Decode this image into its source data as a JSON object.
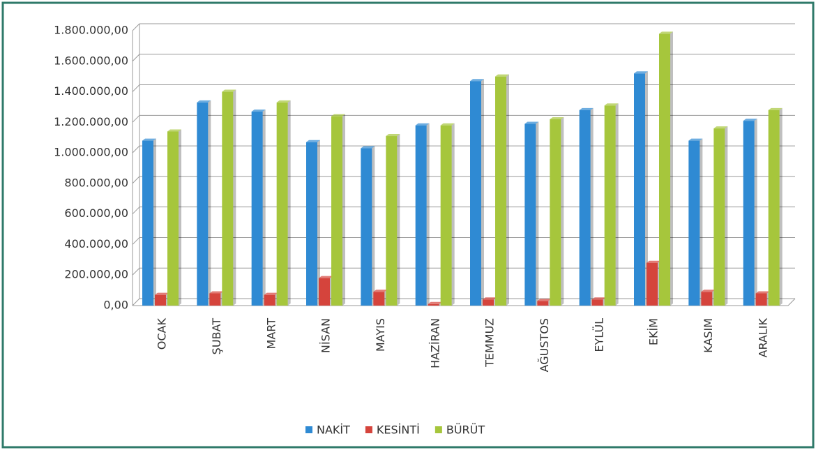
{
  "chart_data": {
    "type": "bar",
    "categories": [
      "OCAK",
      "ŞUBAT",
      "MART",
      "NİSAN",
      "MAYIS",
      "HAZİRAN",
      "TEMMUZ",
      "AĞUSTOS",
      "EYLÜL",
      "EKİM",
      "KASIM",
      "ARALIK"
    ],
    "series": [
      {
        "name": "NAKİT",
        "color": "#2f8ad3",
        "values": [
          1080000,
          1330000,
          1270000,
          1070000,
          1030000,
          1180000,
          1470000,
          1190000,
          1280000,
          1520000,
          1080000,
          1210000
        ]
      },
      {
        "name": "KESİNTİ",
        "color": "#d5443c",
        "values": [
          70000,
          80000,
          70000,
          180000,
          90000,
          10000,
          40000,
          30000,
          40000,
          280000,
          90000,
          80000
        ]
      },
      {
        "name": "BÜRÜT",
        "color": "#a6c63c",
        "values": [
          1140000,
          1400000,
          1330000,
          1240000,
          1110000,
          1180000,
          1500000,
          1220000,
          1310000,
          1780000,
          1160000,
          1280000
        ]
      }
    ],
    "ylim": [
      0,
      1800000
    ],
    "yticks": [
      {
        "value": 0,
        "label": "0,00"
      },
      {
        "value": 200000,
        "label": "200.000,00"
      },
      {
        "value": 400000,
        "label": "400.000,00"
      },
      {
        "value": 600000,
        "label": "600.000,00"
      },
      {
        "value": 800000,
        "label": "800.000,00"
      },
      {
        "value": 1000000,
        "label": "1.000.000,00"
      },
      {
        "value": 1200000,
        "label": "1.200.000,00"
      },
      {
        "value": 1400000,
        "label": "1.400.000,00"
      },
      {
        "value": 1600000,
        "label": "1.600.000,00"
      },
      {
        "value": 1800000,
        "label": "1.800.000,00"
      }
    ],
    "grid": true,
    "legend": "bottom"
  }
}
